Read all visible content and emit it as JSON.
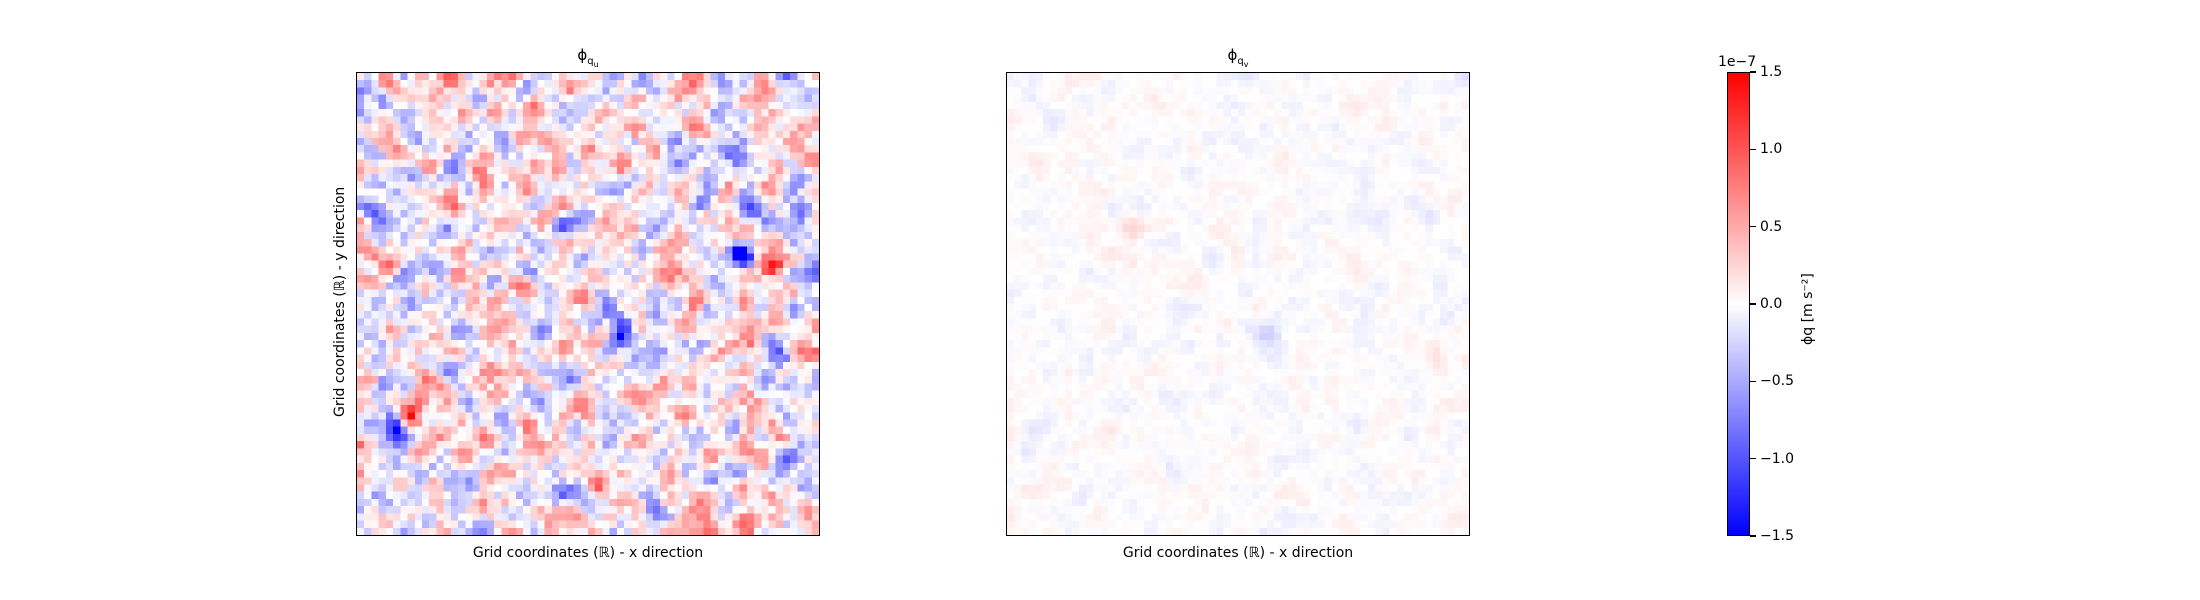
{
  "chart_data": [
    {
      "type": "heatmap",
      "title_main": "ϕ",
      "title_sub": "q",
      "title_sub2": "u",
      "xlabel": "Grid coordinates (ℝ) - x direction",
      "ylabel": "Grid coordinates (ℝ) - y direction",
      "grid_size": [
        64,
        64
      ],
      "value_range": [
        -1.5e-07,
        1.5e-07
      ],
      "amplitude_fraction": 0.55,
      "hotspots": [
        {
          "gx": 53,
          "gy": 25,
          "v": -1.0
        },
        {
          "gx": 57,
          "gy": 26,
          "v": 1.0
        },
        {
          "gx": 7,
          "gy": 47,
          "v": 1.0
        },
        {
          "gx": 5,
          "gy": 49,
          "v": -0.9
        },
        {
          "gx": 36,
          "gy": 36,
          "v": -0.85
        },
        {
          "gx": 52,
          "gy": 10,
          "v": -0.8
        },
        {
          "gx": 58,
          "gy": 38,
          "v": -0.8
        },
        {
          "gx": 17,
          "gy": 12,
          "v": 0.7
        }
      ],
      "colormap": "bwr"
    },
    {
      "type": "heatmap",
      "title_main": "ϕ",
      "title_sub": "q",
      "title_sub2": "v",
      "xlabel": "Grid coordinates (ℝ) - x direction",
      "ylabel": "",
      "grid_size": [
        64,
        64
      ],
      "value_range": [
        -1.5e-07,
        1.5e-07
      ],
      "amplitude_fraction": 0.08,
      "hotspots": [
        {
          "gx": 36,
          "gy": 36,
          "v": -0.2
        },
        {
          "gx": 17,
          "gy": 21,
          "v": 0.15
        }
      ],
      "colormap": "bwr"
    }
  ],
  "colorbar": {
    "exponent_label": "1e−7",
    "label": "ϕq [m s⁻²]",
    "ticks": [
      {
        "label": "1.5",
        "value": 1.5
      },
      {
        "label": "1.0",
        "value": 1.0
      },
      {
        "label": "0.5",
        "value": 0.5
      },
      {
        "label": "0.0",
        "value": 0.0
      },
      {
        "label": "−0.5",
        "value": -0.5
      },
      {
        "label": "−1.0",
        "value": -1.0
      },
      {
        "label": "−1.5",
        "value": -1.5
      }
    ],
    "colors": {
      "max": "#ff0000",
      "mid": "#ffffff",
      "min": "#0000ff"
    }
  }
}
